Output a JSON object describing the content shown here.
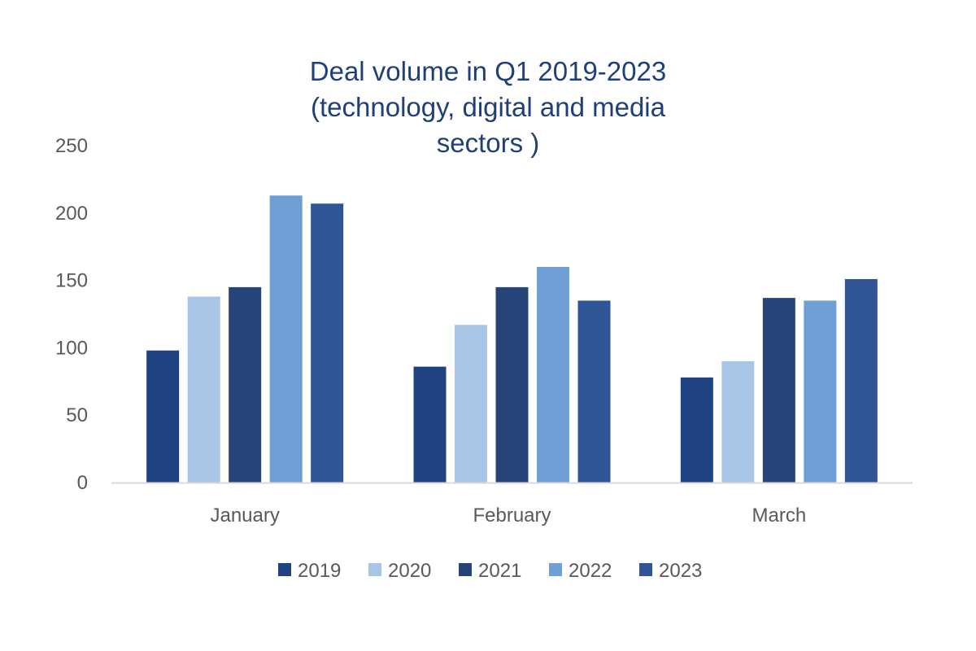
{
  "chart_data": {
    "type": "bar",
    "title_lines": [
      "Deal volume in Q1 2019-2023",
      "(technology, digital and media",
      "sectors )"
    ],
    "categories": [
      "January",
      "February",
      "March"
    ],
    "series": [
      {
        "name": "2019",
        "color": "#1f4280",
        "values": [
          98,
          86,
          78
        ]
      },
      {
        "name": "2020",
        "color": "#a9c5e6",
        "values": [
          138,
          117,
          90
        ]
      },
      {
        "name": "2021",
        "color": "#264478",
        "values": [
          145,
          145,
          137
        ]
      },
      {
        "name": "2022",
        "color": "#6f9fd4",
        "values": [
          213,
          160,
          135
        ]
      },
      {
        "name": "2023",
        "color": "#2f5597",
        "values": [
          207,
          135,
          151
        ]
      }
    ],
    "yticks": [
      "0",
      "50",
      "100",
      "150",
      "200",
      "250"
    ],
    "ylim": [
      0,
      250
    ],
    "xlabel": "",
    "ylabel": "",
    "grid": false,
    "legend_position": "bottom"
  }
}
